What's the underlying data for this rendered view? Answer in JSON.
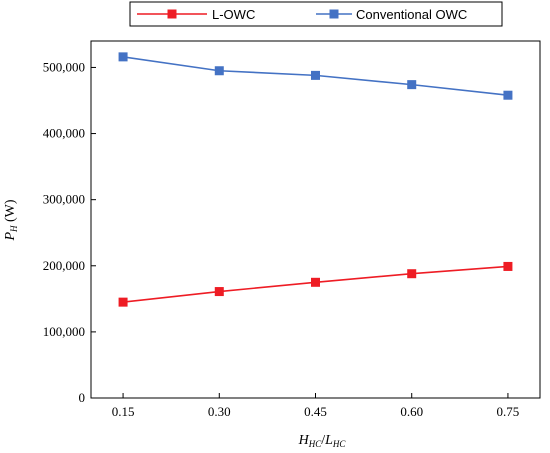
{
  "chart_data": {
    "type": "line",
    "x": [
      0.15,
      0.3,
      0.45,
      0.6,
      0.75
    ],
    "x_tick_labels": [
      "0.15",
      "0.30",
      "0.45",
      "0.60",
      "0.75"
    ],
    "y_ticks": [
      0,
      100000,
      200000,
      300000,
      400000,
      500000
    ],
    "y_tick_labels": [
      "0",
      "100,000",
      "200,000",
      "300,000",
      "400,000",
      "500,000"
    ],
    "xlim": [
      0.1,
      0.8
    ],
    "ylim": [
      0,
      540000
    ],
    "xlabel": {
      "main": "H",
      "sub1": "HC",
      "sep": "/",
      "main2": "L",
      "sub2": "HC"
    },
    "ylabel": {
      "main": "P",
      "sub": "H",
      "unit": " (W)"
    },
    "series": [
      {
        "name": "L-OWC",
        "color": "#ee1c24",
        "marker": "square",
        "values": [
          145000,
          161000,
          175000,
          188000,
          199000
        ]
      },
      {
        "name": "Conventional OWC",
        "color": "#4472c4",
        "marker": "square",
        "values": [
          516000,
          495000,
          488000,
          474000,
          458000
        ]
      }
    ],
    "legend_position": "top",
    "grid": false
  }
}
